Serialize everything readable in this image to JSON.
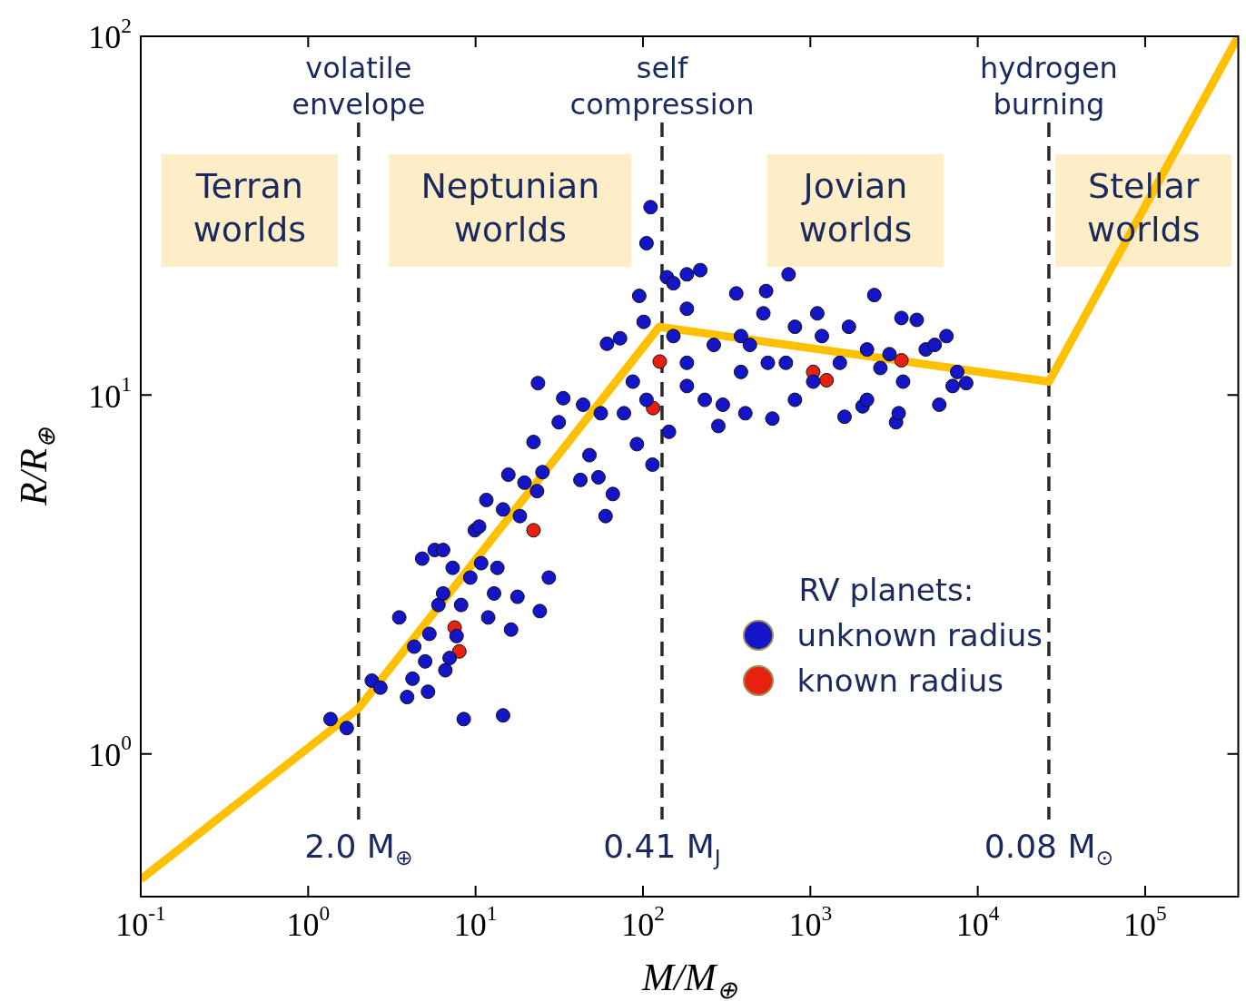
{
  "chart_data": {
    "type": "scatter",
    "xlabel": "M/M$_{⊕}$",
    "ylabel": "R/R$_{⊕}$",
    "legend_title": "RV planets:",
    "legend": "bottom right",
    "marker": "circle",
    "log": "xy",
    "xlim": [
      0.1,
      360000
    ],
    "ylim": [
      0.4,
      100
    ],
    "xticks": [
      {
        "value": 0.1,
        "label": "10$^{-1}$"
      },
      {
        "value": 1,
        "label": "10$^{0}$"
      },
      {
        "value": 10,
        "label": "10$^{1}$"
      },
      {
        "value": 100,
        "label": "10$^{2}$"
      },
      {
        "value": 1000,
        "label": "10$^{3}$"
      },
      {
        "value": 10000,
        "label": "10$^{4}$"
      },
      {
        "value": 100000,
        "label": "10$^{5}$"
      }
    ],
    "yticks": [
      {
        "value": 1,
        "label": "10$^{0}$"
      },
      {
        "value": 10,
        "label": "10$^{1}$"
      },
      {
        "value": 100,
        "label": "10$^{2}$"
      }
    ],
    "series": [
      {
        "type": "line",
        "marker": "none",
        "color": "#ffc000",
        "x": [
          0.1,
          2.0,
          125,
          26600,
          360000
        ],
        "values": [
          0.447,
          1.34,
          15.5,
          10.9,
          100
        ]
      },
      {
        "name": "unknown radius",
        "color": "#1414c8",
        "x": [
          1.36,
          1.7,
          2.4,
          2.7,
          3.5,
          3.9,
          4.2,
          4.3,
          4.8,
          5.0,
          5.2,
          5.7,
          6.4,
          6.0,
          5.3,
          6.4,
          6.6,
          7.0,
          7.3,
          7.7,
          8.2,
          8.5,
          9.3,
          9.9,
          10.5,
          10.8,
          11.6,
          11.9,
          12.9,
          13.5,
          14.6,
          14.6,
          15.7,
          16.3,
          17.8,
          18.4,
          19.6,
          22.2,
          23.3,
          24.2,
          25.1,
          23.6,
          27.4,
          31.4,
          33.4,
          42.3,
          43.9,
          47.9,
          54.2,
          59.8,
          66.1,
          56,
          61,
          73,
          77,
          87,
          92,
          95,
          101,
          105,
          111,
          114,
          105,
          143,
          139,
          152,
          183,
          220,
          183,
          152,
          183,
          234,
          282,
          300,
          361,
          435,
          524,
          544,
          593,
          409,
          714,
          741,
          809,
          1040,
          1172,
          1500,
          1700,
          1600,
          2050,
          2410,
          2620,
          3250,
          3370,
          3500,
          4320,
          4890,
          5530,
          5890,
          6500,
          7080,
          7540,
          8530,
          1100,
          2180,
          3580,
          385,
          265,
          809,
          557,
          183,
          2180,
          2970,
          385
        ],
        "values": [
          1.25,
          1.18,
          1.6,
          1.53,
          2.4,
          1.44,
          1.62,
          1.99,
          3.5,
          1.81,
          1.49,
          3.7,
          3.7,
          2.6,
          2.16,
          2.8,
          1.71,
          1.85,
          3.3,
          2.13,
          2.6,
          1.25,
          3.1,
          4.2,
          4.3,
          3.4,
          5.1,
          2.4,
          2.8,
          3.3,
          4.8,
          1.28,
          6.0,
          2.22,
          2.74,
          4.6,
          5.7,
          7.4,
          5.4,
          2.5,
          6.1,
          10.8,
          3.1,
          8.4,
          9.8,
          5.8,
          9.4,
          6.8,
          5.9,
          4.6,
          5.3,
          8.9,
          13.9,
          14.4,
          8.9,
          10.9,
          7.3,
          18.9,
          16,
          26.5,
          33.4,
          6.4,
          9.7,
          7.9,
          21.3,
          20.5,
          21.7,
          22.3,
          17.4,
          14.6,
          12.3,
          9.7,
          8.2,
          9.4,
          19.2,
          13.8,
          16.9,
          19.5,
          8.6,
          8.9,
          12.3,
          21.7,
          15.5,
          10.9,
          14.6,
          12.3,
          15.5,
          8.7,
          9.3,
          19,
          11.9,
          8.4,
          8.9,
          16.4,
          16.2,
          13.4,
          13.8,
          9.4,
          14.6,
          10.6,
          11.6,
          10.8,
          16.9,
          13.4,
          10.9,
          11.6,
          13.8,
          9.7,
          12.3,
          10.6,
          9.7,
          13,
          14.6
        ]
      },
      {
        "name": "known radius",
        "color": "#e82010",
        "x": [
          126,
          115,
          22.2,
          7.5,
          8.0,
          1040,
          1250,
          3500
        ],
        "values": [
          12.4,
          9.2,
          4.2,
          2.25,
          1.93,
          11.6,
          11,
          12.5
        ]
      }
    ],
    "ref_lines": [
      {
        "axis": "x",
        "value": 2.0,
        "label": "2.0 M$_{⊕}$",
        "color": "#2a2a2a",
        "line_style": "dashed"
      },
      {
        "axis": "x",
        "value": 130,
        "label": "0.41 M$_{J}$",
        "color": "#2a2a2a",
        "line_style": "dashed"
      },
      {
        "axis": "x",
        "value": 26600,
        "label": "0.08 M$_{⊙}$",
        "color": "#2a2a2a",
        "line_style": "dashed"
      }
    ],
    "annotations": [
      "volatile\nenvelope",
      "self\ncompression",
      "hydrogen\nburning",
      "Terran\nworlds",
      "Neptunian\nworlds",
      "Jovian\nworlds",
      "Stellar\nworlds"
    ]
  }
}
